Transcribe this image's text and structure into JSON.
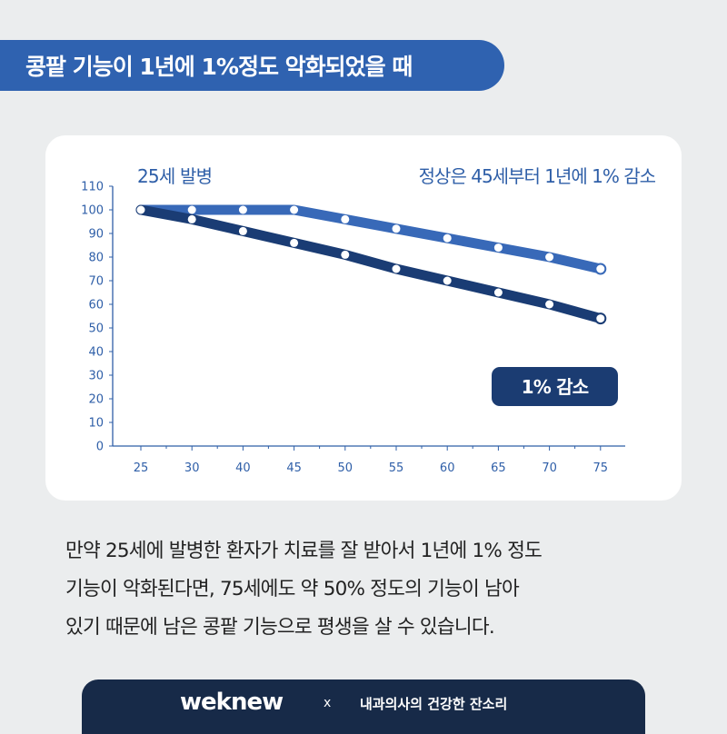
{
  "title": "콩팥 기능이 1년에 1%정도 악화되었을 때",
  "colors": {
    "background": "#ebedee",
    "title_banner": "#2f62b0",
    "normal_line": "#3869b8",
    "decline_line": "#1a3c74",
    "axis": "#2f5fa8",
    "badge": "#1b3c72",
    "footer": "#172a48"
  },
  "chart_data": {
    "type": "line",
    "xlabel": "",
    "ylabel": "",
    "x_ticks": [
      25,
      30,
      40,
      45,
      50,
      55,
      60,
      65,
      70,
      75
    ],
    "y_ticks": [
      0,
      10,
      20,
      30,
      40,
      50,
      60,
      70,
      80,
      90,
      100,
      110
    ],
    "ylim": [
      0,
      110
    ],
    "grid": false,
    "annotations": {
      "top_left": "25세 발병",
      "top_right": "정상은 45세부터 1년에 1% 감소",
      "badge": "1% 감소"
    },
    "series": [
      {
        "name": "정상은 45세부터 1년에 1% 감소",
        "color": "#3869b8",
        "x": [
          25,
          30,
          40,
          45,
          50,
          55,
          60,
          65,
          70,
          75
        ],
        "y": [
          100,
          100,
          100,
          100,
          96,
          92,
          88,
          84,
          80,
          75
        ]
      },
      {
        "name": "1% 감소",
        "color": "#1a3c74",
        "x": [
          25,
          30,
          40,
          45,
          50,
          55,
          60,
          65,
          70,
          75
        ],
        "y": [
          100,
          96,
          91,
          86,
          81,
          75,
          70,
          65,
          60,
          54
        ]
      }
    ]
  },
  "body": {
    "line1": "만약 25세에 발병한 환자가 치료를 잘 받아서 1년에 1% 정도",
    "line2": "기능이 악화된다면, 75세에도 약 50% 정도의 기능이 남아",
    "line3": "있기 때문에 남은 콩팥 기능으로 평생을 살 수 있습니다."
  },
  "footer": {
    "brand": "weknew",
    "separator": "x",
    "subtitle": "내과의사의 건강한 잔소리"
  }
}
